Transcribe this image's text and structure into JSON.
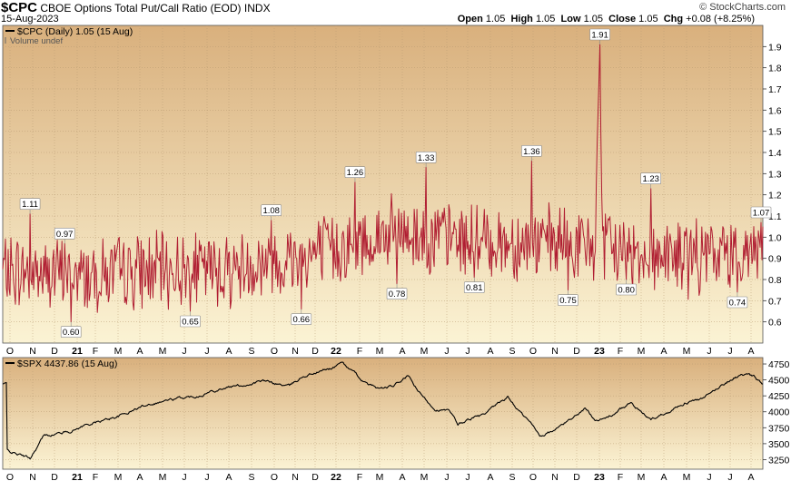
{
  "header": {
    "symbol": "$CPC",
    "name": "CBOE Options Total Put/Call Ratio (EOD)",
    "exchange": "INDX",
    "date": "15-Aug-2023",
    "credit": "© StockCharts.com",
    "open_label": "Open",
    "open": "1.05",
    "high_label": "High",
    "high": "1.05",
    "low_label": "Low",
    "low": "1.05",
    "close_label": "Close",
    "close": "1.05",
    "chg_label": "Chg",
    "chg": "+0.08 (+8.25%)"
  },
  "colors": {
    "bg_top": "#d9b07d",
    "bg_bottom": "#fbf3d4",
    "cpc_line": "#b01e32",
    "spx_line": "#000000"
  },
  "chart_data": [
    {
      "type": "line",
      "legend": "$CPC (Daily) 1.05 (15 Aug)",
      "volume_note": "Volume undef",
      "ylim": [
        0.5,
        2.0
      ],
      "yticks": [
        "0.6",
        "0.7",
        "0.8",
        "0.9",
        "1.0",
        "1.1",
        "1.2",
        "1.3",
        "1.4",
        "1.5",
        "1.6",
        "1.7",
        "1.8",
        "1.9"
      ],
      "xlabels": [
        "O",
        "N",
        "D",
        "21",
        "F",
        "M",
        "A",
        "M",
        "J",
        "J",
        "A",
        "S",
        "O",
        "N",
        "D",
        "22",
        "F",
        "M",
        "A",
        "M",
        "J",
        "J",
        "A",
        "S",
        "O",
        "N",
        "D",
        "23",
        "F",
        "M",
        "A",
        "M",
        "J",
        "J",
        "A"
      ],
      "annotations": [
        {
          "t": 30,
          "value": 1.11,
          "label": "1.11",
          "pos": "above"
        },
        {
          "t": 68,
          "value": 0.97,
          "label": "0.97",
          "pos": "above"
        },
        {
          "t": 75,
          "value": 0.6,
          "label": "0.60",
          "pos": "below"
        },
        {
          "t": 206,
          "value": 0.65,
          "label": "0.65",
          "pos": "below"
        },
        {
          "t": 295,
          "value": 1.08,
          "label": "1.08",
          "pos": "above"
        },
        {
          "t": 328,
          "value": 0.66,
          "label": "0.66",
          "pos": "below"
        },
        {
          "t": 387,
          "value": 1.26,
          "label": "1.26",
          "pos": "above"
        },
        {
          "t": 433,
          "value": 0.78,
          "label": "0.78",
          "pos": "below"
        },
        {
          "t": 465,
          "value": 1.33,
          "label": "1.33",
          "pos": "above"
        },
        {
          "t": 518,
          "value": 0.81,
          "label": "0.81",
          "pos": "below"
        },
        {
          "t": 581,
          "value": 1.36,
          "label": "1.36",
          "pos": "above"
        },
        {
          "t": 621,
          "value": 0.75,
          "label": "0.75",
          "pos": "below"
        },
        {
          "t": 656,
          "value": 1.91,
          "label": "1.91",
          "pos": "above"
        },
        {
          "t": 685,
          "value": 0.8,
          "label": "0.80",
          "pos": "below"
        },
        {
          "t": 712,
          "value": 1.23,
          "label": "1.23",
          "pos": "above"
        },
        {
          "t": 807,
          "value": 0.74,
          "label": "0.74",
          "pos": "below"
        },
        {
          "t": 833,
          "value": 1.07,
          "label": "1.07",
          "pos": "above"
        }
      ]
    },
    {
      "type": "line",
      "legend": "$SPX 4437.86 (15 Aug)",
      "ylim": [
        3100,
        4850
      ],
      "yticks": [
        "3250",
        "3500",
        "3750",
        "4000",
        "4250",
        "4500",
        "4750"
      ],
      "xlabels": [
        "O",
        "N",
        "D",
        "21",
        "F",
        "M",
        "A",
        "M",
        "J",
        "J",
        "A",
        "S",
        "O",
        "N",
        "D",
        "22",
        "F",
        "M",
        "A",
        "M",
        "J",
        "J",
        "A",
        "S",
        "O",
        "N",
        "D",
        "23",
        "F",
        "M",
        "A",
        "M",
        "J",
        "J",
        "A"
      ],
      "anchors": [
        [
          5,
          3390
        ],
        [
          30,
          3270
        ],
        [
          45,
          3620
        ],
        [
          75,
          3700
        ],
        [
          90,
          3790
        ],
        [
          110,
          3860
        ],
        [
          135,
          3970
        ],
        [
          160,
          4130
        ],
        [
          185,
          4190
        ],
        [
          210,
          4240
        ],
        [
          240,
          4370
        ],
        [
          265,
          4420
        ],
        [
          285,
          4480
        ],
        [
          300,
          4440
        ],
        [
          315,
          4400
        ],
        [
          330,
          4560
        ],
        [
          345,
          4620
        ],
        [
          365,
          4700
        ],
        [
          372,
          4790
        ],
        [
          385,
          4620
        ],
        [
          400,
          4430
        ],
        [
          415,
          4360
        ],
        [
          430,
          4400
        ],
        [
          445,
          4560
        ],
        [
          460,
          4250
        ],
        [
          475,
          4050
        ],
        [
          490,
          4010
        ],
        [
          500,
          3800
        ],
        [
          515,
          3900
        ],
        [
          530,
          3950
        ],
        [
          545,
          4130
        ],
        [
          555,
          4230
        ],
        [
          568,
          4000
        ],
        [
          580,
          3820
        ],
        [
          590,
          3630
        ],
        [
          605,
          3700
        ],
        [
          620,
          3850
        ],
        [
          640,
          4050
        ],
        [
          650,
          3900
        ],
        [
          660,
          3880
        ],
        [
          675,
          4000
        ],
        [
          690,
          4140
        ],
        [
          700,
          4000
        ],
        [
          712,
          3880
        ],
        [
          730,
          4000
        ],
        [
          750,
          4150
        ],
        [
          770,
          4200
        ],
        [
          790,
          4420
        ],
        [
          805,
          4550
        ],
        [
          815,
          4580
        ],
        [
          825,
          4540
        ],
        [
          835,
          4437
        ]
      ]
    }
  ]
}
